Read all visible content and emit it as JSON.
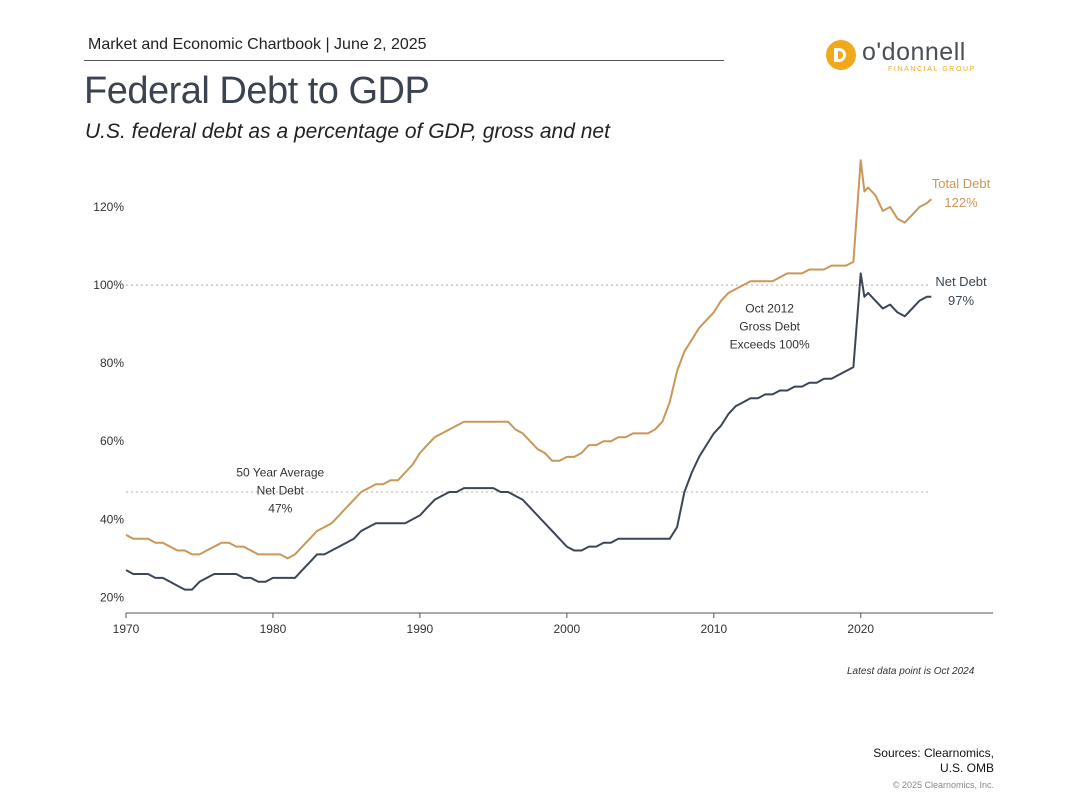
{
  "header": {
    "chartbook": "Market and Economic Chartbook | June 2, 2025",
    "title": "Federal Debt to GDP",
    "subtitle": "U.S. federal debt as a percentage of GDP, gross and net"
  },
  "logo": {
    "name": "o'donnell",
    "tagline": "FINANCIAL GROUP",
    "icon": "odonnell-logo-icon"
  },
  "footer": {
    "latest": "Latest data point is Oct 2024",
    "sources_line1": "Sources: Clearnomics,",
    "sources_line2": "U.S. OMB",
    "copyright": "© 2025 Clearnomics, Inc."
  },
  "colors": {
    "total": "#c99758",
    "net": "#3b4656",
    "refline": "#c7a0a0",
    "avgline": "#b0b0b0",
    "axis": "#555555"
  },
  "chart_data": {
    "type": "line",
    "title": "Federal Debt to GDP",
    "xlabel": "",
    "ylabel": "",
    "xlim": [
      1970,
      2029
    ],
    "ylim": [
      16,
      130
    ],
    "x_ticks": [
      1970,
      1980,
      1990,
      2000,
      2010,
      2020
    ],
    "y_ticks": [
      20,
      40,
      60,
      80,
      100,
      120
    ],
    "y_tick_labels": [
      "20%",
      "40%",
      "60%",
      "80%",
      "100%",
      "120%"
    ],
    "grid": false,
    "reference_lines": [
      {
        "value": 100,
        "style": "dotted"
      },
      {
        "value": 47,
        "style": "dotted"
      }
    ],
    "annotations": [
      {
        "lines": [
          "50 Year Average",
          "Net Debt",
          "47%"
        ],
        "x": 1980.5,
        "y": 51
      },
      {
        "lines": [
          "Oct 2012",
          "Gross Debt",
          "Exceeds 100%"
        ],
        "x": 2013.8,
        "y": 93
      }
    ],
    "series": [
      {
        "name": "Total Debt",
        "end_label": "Total Debt",
        "end_value_label": "122%",
        "x": [
          1970,
          1970.5,
          1971,
          1971.5,
          1972,
          1972.5,
          1973,
          1973.5,
          1974,
          1974.5,
          1975,
          1975.5,
          1976,
          1976.5,
          1977,
          1977.5,
          1978,
          1978.5,
          1979,
          1979.5,
          1980,
          1980.5,
          1981,
          1981.5,
          1982,
          1982.5,
          1983,
          1983.5,
          1984,
          1984.5,
          1985,
          1985.5,
          1986,
          1986.5,
          1987,
          1987.5,
          1988,
          1988.5,
          1989,
          1989.5,
          1990,
          1990.5,
          1991,
          1991.5,
          1992,
          1992.5,
          1993,
          1993.5,
          1994,
          1994.5,
          1995,
          1995.5,
          1996,
          1996.5,
          1997,
          1997.5,
          1998,
          1998.5,
          1999,
          1999.5,
          2000,
          2000.5,
          2001,
          2001.5,
          2002,
          2002.5,
          2003,
          2003.5,
          2004,
          2004.5,
          2005,
          2005.5,
          2006,
          2006.5,
          2007,
          2007.5,
          2008,
          2008.5,
          2009,
          2009.5,
          2010,
          2010.5,
          2011,
          2011.5,
          2012,
          2012.5,
          2013,
          2013.5,
          2014,
          2014.5,
          2015,
          2015.5,
          2016,
          2016.5,
          2017,
          2017.5,
          2018,
          2018.5,
          2019,
          2019.5,
          2020,
          2020.25,
          2020.5,
          2021,
          2021.5,
          2022,
          2022.5,
          2023,
          2023.5,
          2024,
          2024.5,
          2024.8
        ],
        "values": [
          36,
          35,
          35,
          35,
          34,
          34,
          33,
          32,
          32,
          31,
          31,
          32,
          33,
          34,
          34,
          33,
          33,
          32,
          31,
          31,
          31,
          31,
          30,
          31,
          33,
          35,
          37,
          38,
          39,
          41,
          43,
          45,
          47,
          48,
          49,
          49,
          50,
          50,
          52,
          54,
          57,
          59,
          61,
          62,
          63,
          64,
          65,
          65,
          65,
          65,
          65,
          65,
          65,
          63,
          62,
          60,
          58,
          57,
          55,
          55,
          56,
          56,
          57,
          59,
          59,
          60,
          60,
          61,
          61,
          62,
          62,
          62,
          63,
          65,
          70,
          78,
          83,
          86,
          89,
          91,
          93,
          96,
          98,
          99,
          100,
          101,
          101,
          101,
          101,
          102,
          103,
          103,
          103,
          104,
          104,
          104,
          105,
          105,
          105,
          106,
          132,
          124,
          125,
          123,
          119,
          120,
          117,
          116,
          118,
          120,
          121,
          122
        ]
      },
      {
        "name": "Net Debt",
        "end_label": "Net Debt",
        "end_value_label": "97%",
        "x": [
          1970,
          1970.5,
          1971,
          1971.5,
          1972,
          1972.5,
          1973,
          1973.5,
          1974,
          1974.5,
          1975,
          1975.5,
          1976,
          1976.5,
          1977,
          1977.5,
          1978,
          1978.5,
          1979,
          1979.5,
          1980,
          1980.5,
          1981,
          1981.5,
          1982,
          1982.5,
          1983,
          1983.5,
          1984,
          1984.5,
          1985,
          1985.5,
          1986,
          1986.5,
          1987,
          1987.5,
          1988,
          1988.5,
          1989,
          1989.5,
          1990,
          1990.5,
          1991,
          1991.5,
          1992,
          1992.5,
          1993,
          1993.5,
          1994,
          1994.5,
          1995,
          1995.5,
          1996,
          1996.5,
          1997,
          1997.5,
          1998,
          1998.5,
          1999,
          1999.5,
          2000,
          2000.5,
          2001,
          2001.5,
          2002,
          2002.5,
          2003,
          2003.5,
          2004,
          2004.5,
          2005,
          2005.5,
          2006,
          2006.5,
          2007,
          2007.5,
          2008,
          2008.5,
          2009,
          2009.5,
          2010,
          2010.5,
          2011,
          2011.5,
          2012,
          2012.5,
          2013,
          2013.5,
          2014,
          2014.5,
          2015,
          2015.5,
          2016,
          2016.5,
          2017,
          2017.5,
          2018,
          2018.5,
          2019,
          2019.5,
          2020,
          2020.25,
          2020.5,
          2021,
          2021.5,
          2022,
          2022.5,
          2023,
          2023.5,
          2024,
          2024.5,
          2024.8
        ],
        "values": [
          27,
          26,
          26,
          26,
          25,
          25,
          24,
          23,
          22,
          22,
          24,
          25,
          26,
          26,
          26,
          26,
          25,
          25,
          24,
          24,
          25,
          25,
          25,
          25,
          27,
          29,
          31,
          31,
          32,
          33,
          34,
          35,
          37,
          38,
          39,
          39,
          39,
          39,
          39,
          40,
          41,
          43,
          45,
          46,
          47,
          47,
          48,
          48,
          48,
          48,
          48,
          47,
          47,
          46,
          45,
          43,
          41,
          39,
          37,
          35,
          33,
          32,
          32,
          33,
          33,
          34,
          34,
          35,
          35,
          35,
          35,
          35,
          35,
          35,
          35,
          38,
          47,
          52,
          56,
          59,
          62,
          64,
          67,
          69,
          70,
          71,
          71,
          72,
          72,
          73,
          73,
          74,
          74,
          75,
          75,
          76,
          76,
          77,
          78,
          79,
          103,
          97,
          98,
          96,
          94,
          95,
          93,
          92,
          94,
          96,
          97,
          97
        ]
      }
    ]
  }
}
